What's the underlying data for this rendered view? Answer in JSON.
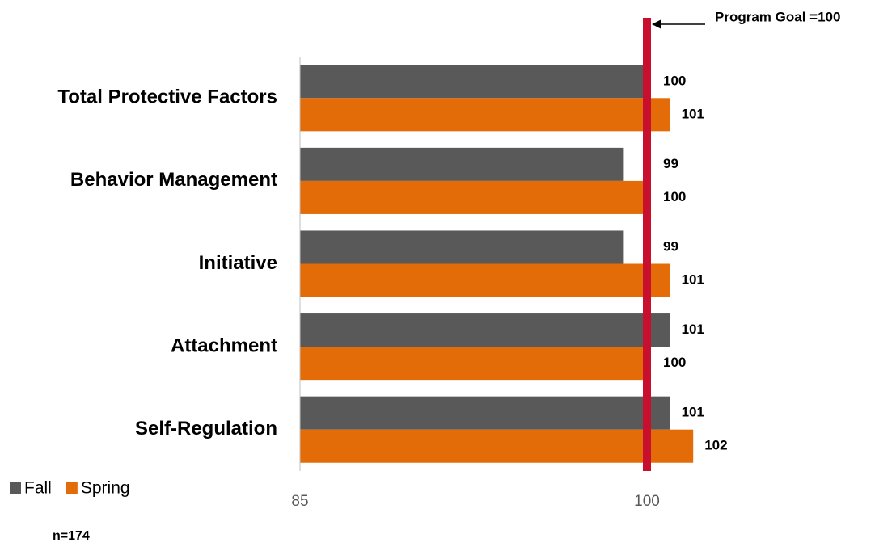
{
  "chart_data": {
    "type": "hbar",
    "categories": [
      "Total Protective Factors",
      "Behavior Management",
      "Initiative",
      "Attachment",
      "Self-Regulation"
    ],
    "series": [
      {
        "name": "Fall",
        "color": "#595959",
        "values": [
          100,
          99,
          99,
          101,
          101
        ]
      },
      {
        "name": "Spring",
        "color": "#e36c09",
        "values": [
          101,
          100,
          101,
          100,
          102
        ]
      }
    ],
    "xlim": [
      85,
      110
    ],
    "xticks": [
      85,
      100
    ],
    "goal": {
      "value": 100,
      "label": "Program Goal =100",
      "color": "#c8102e"
    },
    "note": "n=174",
    "legend": "bottom-left"
  }
}
